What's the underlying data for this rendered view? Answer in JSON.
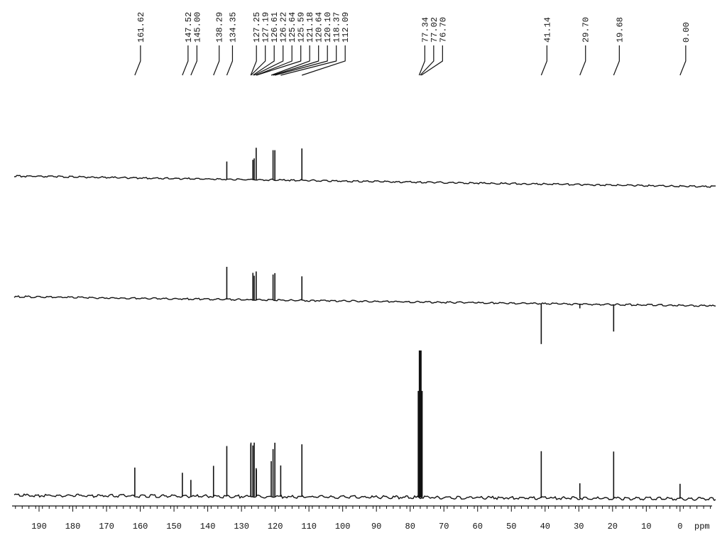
{
  "chart_data": {
    "type": "nmr",
    "x_label": "ppm",
    "xlim": [
      198,
      -9.5
    ],
    "xticks": [
      190,
      180,
      170,
      160,
      150,
      140,
      130,
      120,
      110,
      100,
      90,
      80,
      70,
      60,
      50,
      40,
      30,
      20,
      10,
      0
    ],
    "peak_labels": [
      161.62,
      147.52,
      {
        "value": 145.0,
        "label": "145.00"
      },
      138.29,
      134.35,
      127.25,
      127.19,
      126.61,
      126.22,
      125.64,
      125.59,
      121.18,
      120.64,
      {
        "value": 120.1,
        "label": "120.10"
      },
      118.37,
      112.09,
      77.34,
      77.02,
      {
        "value": 76.7,
        "label": "76.70"
      },
      41.14,
      {
        "value": 29.7,
        "label": "29.70"
      },
      19.68,
      {
        "value": 0,
        "label": "0.00"
      }
    ],
    "series": [
      {
        "color": "#111111",
        "x": [
          134.35,
          126.61,
          126.22,
          125.64,
          120.64,
          120.1,
          112.09
        ],
        "values": [
          25,
          28,
          30,
          45,
          42,
          42,
          45
        ]
      },
      {
        "color": "#111111",
        "x": [
          134.35,
          126.61,
          126.22,
          125.64,
          120.64,
          120.1,
          112.09,
          41.14,
          29.7,
          19.68
        ],
        "values": [
          46,
          38,
          34,
          40,
          36,
          38,
          34,
          -57,
          -6,
          -38
        ]
      },
      {
        "color": "#111111",
        "x": [
          161.62,
          147.52,
          145.0,
          138.29,
          134.35,
          127.25,
          127.19,
          126.61,
          126.22,
          125.64,
          125.59,
          121.18,
          120.64,
          120.1,
          118.37,
          112.09,
          77.34,
          77.02,
          76.7,
          41.14,
          29.7,
          19.68,
          0
        ],
        "values": [
          40,
          33,
          23,
          43,
          71,
          74,
          76,
          72,
          76,
          40,
          38,
          50,
          67,
          76,
          44,
          74,
          150,
          207,
          150,
          66,
          21,
          66,
          21
        ]
      }
    ]
  }
}
